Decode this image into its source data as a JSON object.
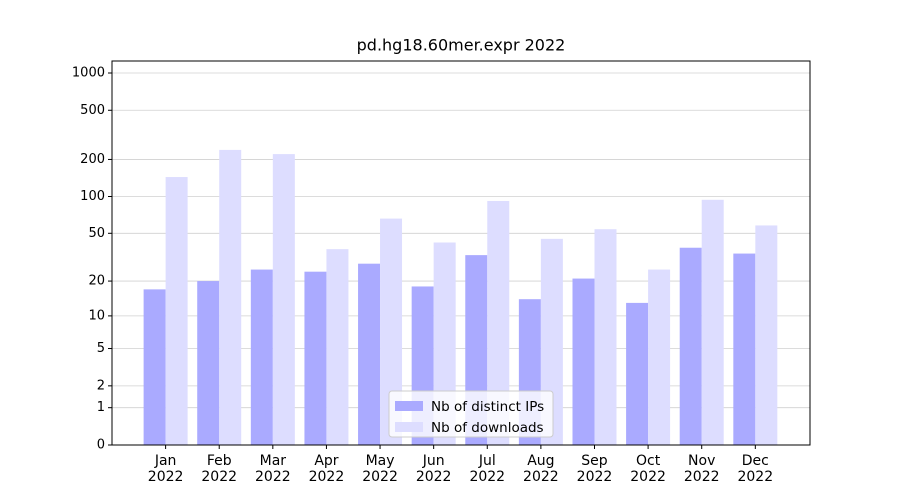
{
  "chart_data": {
    "type": "bar",
    "title": "pd.hg18.60mer.expr 2022",
    "categories": [
      "Jan\n2022",
      "Feb\n2022",
      "Mar\n2022",
      "Apr\n2022",
      "May\n2022",
      "Jun\n2022",
      "Jul\n2022",
      "Aug\n2022",
      "Sep\n2022",
      "Oct\n2022",
      "Nov\n2022",
      "Dec\n2022"
    ],
    "series": [
      {
        "name": "Nb of distinct IPs",
        "color": "#aaaaff",
        "values": [
          17,
          20,
          25,
          24,
          28,
          18,
          33,
          14,
          21,
          13,
          38,
          34
        ]
      },
      {
        "name": "Nb of downloads",
        "color": "#ddddff",
        "values": [
          144,
          239,
          221,
          37,
          66,
          42,
          92,
          45,
          54,
          25,
          94,
          58
        ]
      }
    ],
    "yscale": "log1p",
    "ylim": [
      0,
      1250
    ],
    "yticks": [
      0,
      1,
      2,
      5,
      10,
      20,
      50,
      100,
      200,
      500,
      1000
    ],
    "grid": true,
    "legend": "lower center"
  }
}
